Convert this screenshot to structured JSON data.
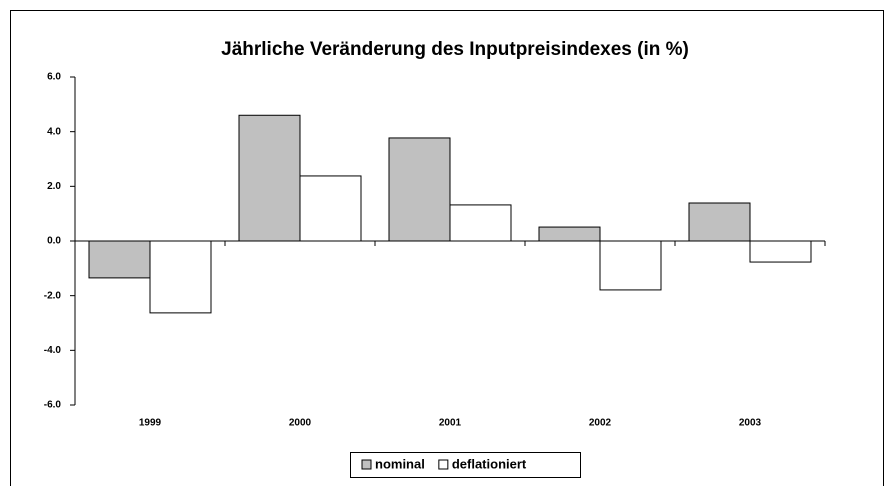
{
  "chart_data": {
    "type": "bar",
    "title": "Jährliche Veränderung des Inputpreisindexes (in %)",
    "categories": [
      "1999",
      "2000",
      "2001",
      "2002",
      "2003"
    ],
    "series": [
      {
        "name": "nominal",
        "color": "#c0c0c0",
        "values": [
          -1.35,
          4.6,
          3.77,
          0.51,
          1.39
        ]
      },
      {
        "name": "deflationiert",
        "color": "#ffffff",
        "values": [
          -2.63,
          2.38,
          1.32,
          -1.79,
          -0.77
        ]
      }
    ],
    "ylim": [
      -6,
      6
    ],
    "yticks": [
      {
        "value": -6,
        "label": "-6.0"
      },
      {
        "value": -4,
        "label": "-4.0"
      },
      {
        "value": -2,
        "label": "-2.0"
      },
      {
        "value": 0,
        "label": "0.0"
      },
      {
        "value": 2,
        "label": "2.0"
      },
      {
        "value": 4,
        "label": "4.0"
      },
      {
        "value": 6,
        "label": "6.0"
      }
    ],
    "legend": "bottom"
  }
}
